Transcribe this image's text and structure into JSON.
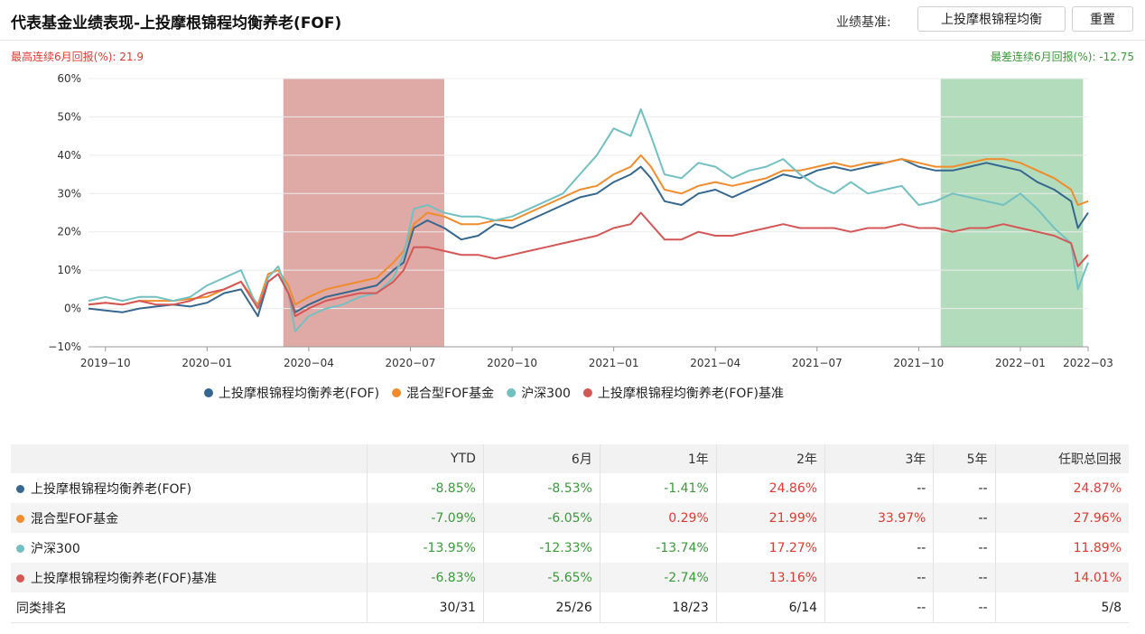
{
  "header": {
    "title": "代表基金业绩表现-上投摩根锦程均衡养老(FOF)",
    "benchmark_label": "业绩基准:",
    "benchmark_button": "上投摩根锦程均衡",
    "reset_button": "重置"
  },
  "stats": {
    "best_label": "最高连续6月回报(%): 21.9",
    "worst_label": "最差连续6月回报(%): -12.75"
  },
  "colors": {
    "fund": "#35678f",
    "fof": "#f08c2c",
    "hs300": "#73c0c2",
    "bench": "#d45756",
    "best_band": "#c9706a",
    "worst_band": "#74bf87",
    "neg": "#3a9a3a",
    "pos": "#e03a32"
  },
  "chart_data": {
    "type": "line",
    "y_ticks": [
      "60%",
      "50%",
      "40%",
      "30%",
      "20%",
      "10%",
      "0%",
      "−10%"
    ],
    "ylim": [
      -10,
      60
    ],
    "x_ticks": [
      "2019−10",
      "2020−01",
      "2020−04",
      "2020−07",
      "2020−10",
      "2021−01",
      "2021−04",
      "2021−07",
      "2021−10",
      "2022−01",
      "2022−03"
    ],
    "x_tick_pos": [
      0.5,
      3.5,
      6.5,
      9.5,
      12.5,
      15.5,
      18.5,
      21.5,
      24.5,
      27.5,
      29.5
    ],
    "xlim": [
      0,
      29.5
    ],
    "best_band": [
      5.75,
      10.5
    ],
    "worst_band": [
      25.15,
      29.35
    ],
    "series": [
      {
        "name": "上投摩根锦程均衡养老(FOF)",
        "color_key": "fund",
        "points": [
          [
            0,
            0
          ],
          [
            0.5,
            -0.5
          ],
          [
            1,
            -1
          ],
          [
            1.5,
            0
          ],
          [
            2,
            0.5
          ],
          [
            2.5,
            1
          ],
          [
            3,
            0.5
          ],
          [
            3.5,
            1.5
          ],
          [
            4,
            4
          ],
          [
            4.5,
            5
          ],
          [
            5,
            -2
          ],
          [
            5.3,
            7
          ],
          [
            5.6,
            9
          ],
          [
            5.9,
            4
          ],
          [
            6.1,
            -1
          ],
          [
            6.5,
            1
          ],
          [
            7,
            3
          ],
          [
            7.5,
            4
          ],
          [
            8,
            5
          ],
          [
            8.5,
            6
          ],
          [
            9,
            10
          ],
          [
            9.3,
            12
          ],
          [
            9.6,
            21
          ],
          [
            10,
            23
          ],
          [
            10.5,
            21
          ],
          [
            11,
            18
          ],
          [
            11.5,
            19
          ],
          [
            12,
            22
          ],
          [
            12.5,
            21
          ],
          [
            13,
            23
          ],
          [
            13.5,
            25
          ],
          [
            14,
            27
          ],
          [
            14.5,
            29
          ],
          [
            15,
            30
          ],
          [
            15.5,
            33
          ],
          [
            16,
            35
          ],
          [
            16.3,
            37
          ],
          [
            16.6,
            34
          ],
          [
            17,
            28
          ],
          [
            17.5,
            27
          ],
          [
            18,
            30
          ],
          [
            18.5,
            31
          ],
          [
            19,
            29
          ],
          [
            19.5,
            31
          ],
          [
            20,
            33
          ],
          [
            20.5,
            35
          ],
          [
            21,
            34
          ],
          [
            21.5,
            36
          ],
          [
            22,
            37
          ],
          [
            22.5,
            36
          ],
          [
            23,
            37
          ],
          [
            23.5,
            38
          ],
          [
            24,
            39
          ],
          [
            24.5,
            37
          ],
          [
            25,
            36
          ],
          [
            25.5,
            36
          ],
          [
            26,
            37
          ],
          [
            26.5,
            38
          ],
          [
            27,
            37
          ],
          [
            27.5,
            36
          ],
          [
            28,
            33
          ],
          [
            28.5,
            31
          ],
          [
            29,
            28
          ],
          [
            29.2,
            21
          ],
          [
            29.5,
            25
          ]
        ]
      },
      {
        "name": "混合型FOF基金",
        "color_key": "fof",
        "points": [
          [
            0,
            1
          ],
          [
            0.5,
            1.5
          ],
          [
            1,
            1
          ],
          [
            1.5,
            2
          ],
          [
            2,
            2
          ],
          [
            2.5,
            2
          ],
          [
            3,
            2.5
          ],
          [
            3.5,
            3
          ],
          [
            4,
            5
          ],
          [
            4.5,
            7
          ],
          [
            5,
            1
          ],
          [
            5.3,
            9
          ],
          [
            5.6,
            10
          ],
          [
            5.9,
            6
          ],
          [
            6.1,
            1
          ],
          [
            6.5,
            3
          ],
          [
            7,
            5
          ],
          [
            7.5,
            6
          ],
          [
            8,
            7
          ],
          [
            8.5,
            8
          ],
          [
            9,
            12
          ],
          [
            9.3,
            15
          ],
          [
            9.6,
            22
          ],
          [
            10,
            25
          ],
          [
            10.5,
            24
          ],
          [
            11,
            22
          ],
          [
            11.5,
            22
          ],
          [
            12,
            23
          ],
          [
            12.5,
            23
          ],
          [
            13,
            25
          ],
          [
            13.5,
            27
          ],
          [
            14,
            29
          ],
          [
            14.5,
            31
          ],
          [
            15,
            32
          ],
          [
            15.5,
            35
          ],
          [
            16,
            37
          ],
          [
            16.3,
            40
          ],
          [
            16.6,
            37
          ],
          [
            17,
            31
          ],
          [
            17.5,
            30
          ],
          [
            18,
            32
          ],
          [
            18.5,
            33
          ],
          [
            19,
            32
          ],
          [
            19.5,
            33
          ],
          [
            20,
            34
          ],
          [
            20.5,
            36
          ],
          [
            21,
            36
          ],
          [
            21.5,
            37
          ],
          [
            22,
            38
          ],
          [
            22.5,
            37
          ],
          [
            23,
            38
          ],
          [
            23.5,
            38
          ],
          [
            24,
            39
          ],
          [
            24.5,
            38
          ],
          [
            25,
            37
          ],
          [
            25.5,
            37
          ],
          [
            26,
            38
          ],
          [
            26.5,
            39
          ],
          [
            27,
            39
          ],
          [
            27.5,
            38
          ],
          [
            28,
            36
          ],
          [
            28.5,
            34
          ],
          [
            29,
            31
          ],
          [
            29.2,
            27
          ],
          [
            29.5,
            28
          ]
        ]
      },
      {
        "name": "沪深300",
        "color_key": "hs300",
        "points": [
          [
            0,
            2
          ],
          [
            0.5,
            3
          ],
          [
            1,
            2
          ],
          [
            1.5,
            3
          ],
          [
            2,
            3
          ],
          [
            2.5,
            2
          ],
          [
            3,
            3
          ],
          [
            3.5,
            6
          ],
          [
            4,
            8
          ],
          [
            4.5,
            10
          ],
          [
            5,
            0
          ],
          [
            5.3,
            8
          ],
          [
            5.6,
            11
          ],
          [
            5.9,
            4
          ],
          [
            6.1,
            -6
          ],
          [
            6.5,
            -2
          ],
          [
            7,
            0
          ],
          [
            7.5,
            1
          ],
          [
            8,
            3
          ],
          [
            8.5,
            4
          ],
          [
            9,
            8
          ],
          [
            9.3,
            14
          ],
          [
            9.6,
            26
          ],
          [
            10,
            27
          ],
          [
            10.5,
            25
          ],
          [
            11,
            24
          ],
          [
            11.5,
            24
          ],
          [
            12,
            23
          ],
          [
            12.5,
            24
          ],
          [
            13,
            26
          ],
          [
            13.5,
            28
          ],
          [
            14,
            30
          ],
          [
            14.5,
            35
          ],
          [
            15,
            40
          ],
          [
            15.5,
            47
          ],
          [
            16,
            45
          ],
          [
            16.3,
            52
          ],
          [
            16.6,
            45
          ],
          [
            17,
            35
          ],
          [
            17.5,
            34
          ],
          [
            18,
            38
          ],
          [
            18.5,
            37
          ],
          [
            19,
            34
          ],
          [
            19.5,
            36
          ],
          [
            20,
            37
          ],
          [
            20.5,
            39
          ],
          [
            21,
            35
          ],
          [
            21.5,
            32
          ],
          [
            22,
            30
          ],
          [
            22.5,
            33
          ],
          [
            23,
            30
          ],
          [
            23.5,
            31
          ],
          [
            24,
            32
          ],
          [
            24.5,
            27
          ],
          [
            25,
            28
          ],
          [
            25.5,
            30
          ],
          [
            26,
            29
          ],
          [
            26.5,
            28
          ],
          [
            27,
            27
          ],
          [
            27.5,
            30
          ],
          [
            28,
            26
          ],
          [
            28.5,
            21
          ],
          [
            29,
            17
          ],
          [
            29.2,
            5
          ],
          [
            29.5,
            12
          ]
        ]
      },
      {
        "name": "上投摩根锦程均衡养老(FOF)基准",
        "color_key": "bench",
        "points": [
          [
            0,
            1
          ],
          [
            0.5,
            1.5
          ],
          [
            1,
            1
          ],
          [
            1.5,
            2
          ],
          [
            2,
            1
          ],
          [
            2.5,
            1
          ],
          [
            3,
            2
          ],
          [
            3.5,
            4
          ],
          [
            4,
            5
          ],
          [
            4.5,
            7
          ],
          [
            5,
            0
          ],
          [
            5.3,
            7
          ],
          [
            5.6,
            9
          ],
          [
            5.9,
            4
          ],
          [
            6.1,
            -2
          ],
          [
            6.5,
            0
          ],
          [
            7,
            2
          ],
          [
            7.5,
            3
          ],
          [
            8,
            4
          ],
          [
            8.5,
            4
          ],
          [
            9,
            7
          ],
          [
            9.3,
            10
          ],
          [
            9.6,
            16
          ],
          [
            10,
            16
          ],
          [
            10.5,
            15
          ],
          [
            11,
            14
          ],
          [
            11.5,
            14
          ],
          [
            12,
            13
          ],
          [
            12.5,
            14
          ],
          [
            13,
            15
          ],
          [
            13.5,
            16
          ],
          [
            14,
            17
          ],
          [
            14.5,
            18
          ],
          [
            15,
            19
          ],
          [
            15.5,
            21
          ],
          [
            16,
            22
          ],
          [
            16.3,
            25
          ],
          [
            16.6,
            22
          ],
          [
            17,
            18
          ],
          [
            17.5,
            18
          ],
          [
            18,
            20
          ],
          [
            18.5,
            19
          ],
          [
            19,
            19
          ],
          [
            19.5,
            20
          ],
          [
            20,
            21
          ],
          [
            20.5,
            22
          ],
          [
            21,
            21
          ],
          [
            21.5,
            21
          ],
          [
            22,
            21
          ],
          [
            22.5,
            20
          ],
          [
            23,
            21
          ],
          [
            23.5,
            21
          ],
          [
            24,
            22
          ],
          [
            24.5,
            21
          ],
          [
            25,
            21
          ],
          [
            25.5,
            20
          ],
          [
            26,
            21
          ],
          [
            26.5,
            21
          ],
          [
            27,
            22
          ],
          [
            27.5,
            21
          ],
          [
            28,
            20
          ],
          [
            28.5,
            19
          ],
          [
            29,
            17
          ],
          [
            29.2,
            11
          ],
          [
            29.5,
            14
          ]
        ]
      }
    ]
  },
  "table": {
    "headers": [
      "",
      "YTD",
      "6月",
      "1年",
      "2年",
      "3年",
      "5年",
      "任职总回报"
    ],
    "rows": [
      {
        "name": "上投摩根锦程均衡养老(FOF)",
        "dot": "fund",
        "cells": [
          "-8.85%",
          "-8.53%",
          "-1.41%",
          "24.86%",
          "--",
          "--",
          "24.87%"
        ]
      },
      {
        "name": "混合型FOF基金",
        "dot": "fof",
        "cells": [
          "-7.09%",
          "-6.05%",
          "0.29%",
          "21.99%",
          "33.97%",
          "--",
          "27.96%"
        ]
      },
      {
        "name": "沪深300",
        "dot": "hs300",
        "cells": [
          "-13.95%",
          "-12.33%",
          "-13.74%",
          "17.27%",
          "--",
          "--",
          "11.89%"
        ]
      },
      {
        "name": "上投摩根锦程均衡养老(FOF)基准",
        "dot": "bench",
        "cells": [
          "-6.83%",
          "-5.65%",
          "-2.74%",
          "13.16%",
          "--",
          "--",
          "14.01%"
        ]
      },
      {
        "name": "同类排名",
        "dot": null,
        "cells": [
          "30/31",
          "25/26",
          "18/23",
          "6/14",
          "--",
          "--",
          "5/8"
        ]
      }
    ]
  }
}
